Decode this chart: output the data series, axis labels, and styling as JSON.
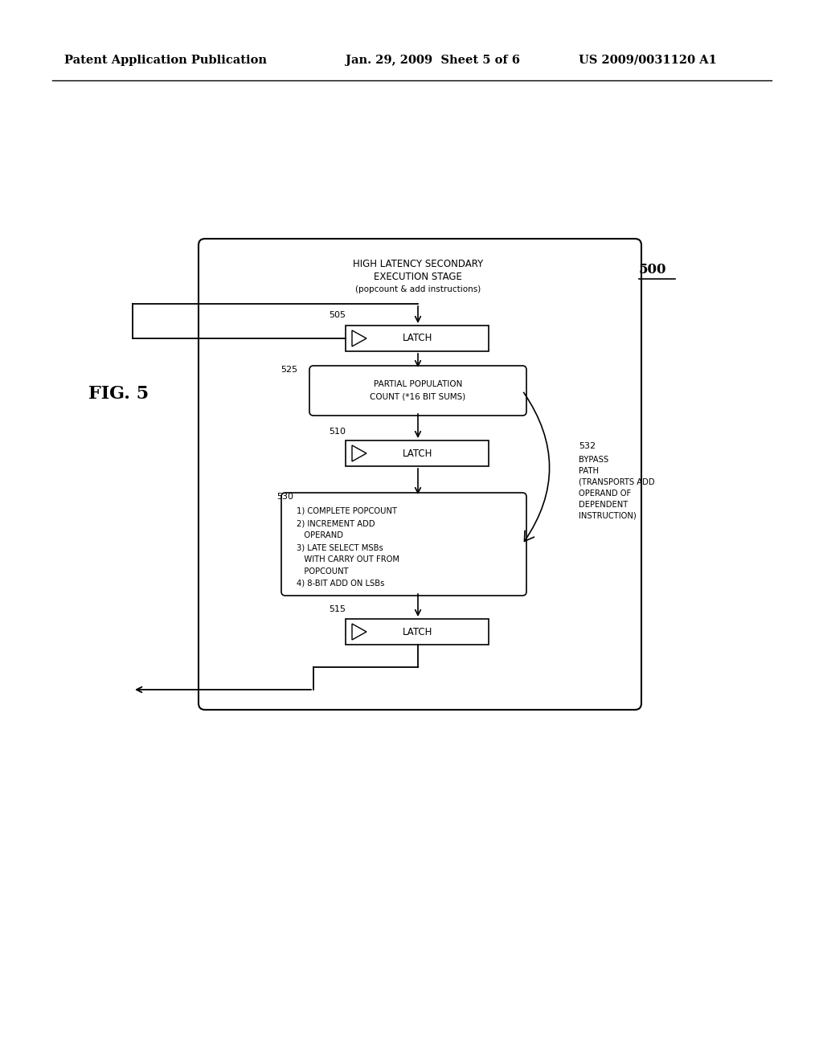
{
  "bg_color": "#ffffff",
  "header_left": "Patent Application Publication",
  "header_mid": "Jan. 29, 2009  Sheet 5 of 6",
  "header_right": "US 2009/0031120 A1",
  "fig_label": "FIG. 5",
  "diagram_label": "500",
  "title_line1": "HIGH LATENCY SECONDARY",
  "title_line2": "EXECUTION STAGE",
  "title_line3": "(popcount & add instructions)",
  "latch1_label": "LATCH",
  "latch1_ref": "505",
  "ppc_label1": "PARTIAL POPULATION",
  "ppc_label2": "COUNT (*16 BIT SUMS)",
  "ppc_ref": "525",
  "latch2_label": "LATCH",
  "latch2_ref": "510",
  "ops_ref": "530",
  "ops_lines": [
    "1) COMPLETE POPCOUNT",
    "2) INCREMENT ADD",
    "   OPERAND",
    "3) LATE SELECT MSBs",
    "   WITH CARRY OUT FROM",
    "   POPCOUNT",
    "4) 8-BIT ADD ON LSBs"
  ],
  "latch3_label": "LATCH",
  "latch3_ref": "515",
  "bypass_ref": "532",
  "bypass_lines": [
    "BYPASS",
    "PATH",
    "(TRANSPORTS ADD",
    "OPERAND OF",
    "DEPENDENT",
    "INSTRUCTION)"
  ]
}
